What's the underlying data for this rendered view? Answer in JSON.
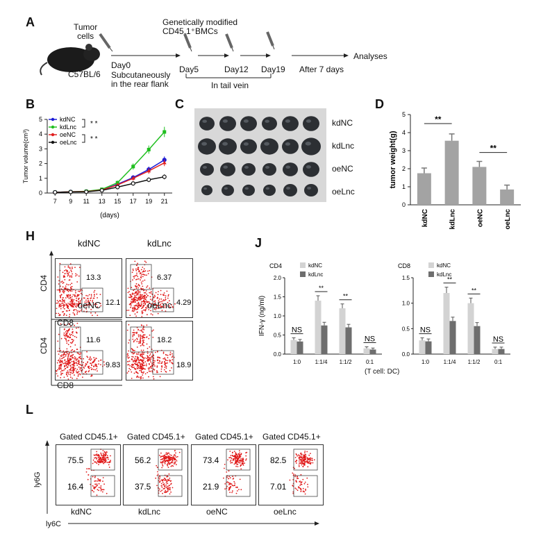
{
  "panels": {
    "A": "A",
    "B": "B",
    "C": "C",
    "D": "D",
    "H": "H",
    "J": "J",
    "L": "L"
  },
  "schematic": {
    "tumor_cells": "Tumor\ncells",
    "mouse": "C57BL/6",
    "modified": "Genetically modified",
    "bmcs": "CD45.1⁺BMCs",
    "day0": "Day0",
    "subq1": "Subcutaneously",
    "subq2": "in the rear flank",
    "day5": "Day5",
    "day12": "Day12",
    "day19": "Day19",
    "after": "After 7 days",
    "analyses": "Analyses",
    "tailvein": "In tail vein"
  },
  "chart_data": [
    {
      "type": "line",
      "ylabel": "Tumor volume(cm³)",
      "xlabel": "(days)",
      "ylim": [
        0,
        5
      ],
      "x": [
        7,
        9,
        11,
        13,
        15,
        17,
        19,
        21
      ],
      "series": [
        {
          "name": "kdNC",
          "values": [
            0.05,
            0.08,
            0.1,
            0.2,
            0.6,
            1.05,
            1.6,
            2.25
          ],
          "color": "#1a1ad6"
        },
        {
          "name": "kdLnc",
          "values": [
            0.05,
            0.08,
            0.12,
            0.25,
            0.7,
            1.8,
            2.95,
            4.15
          ],
          "color": "#1fbf1f"
        },
        {
          "name": "oeNC",
          "values": [
            0.05,
            0.08,
            0.1,
            0.2,
            0.55,
            1.0,
            1.5,
            2.05
          ],
          "color": "#e02020"
        },
        {
          "name": "oeLnc",
          "values": [
            0.05,
            0.07,
            0.08,
            0.18,
            0.4,
            0.65,
            0.9,
            1.1
          ],
          "color": "#111111"
        }
      ],
      "annotations": [
        "* *",
        "* *"
      ]
    },
    {
      "type": "bar",
      "ylabel": "tumor weight(g)",
      "ylim": [
        0,
        5
      ],
      "categories": [
        "kdNC",
        "kdLnc",
        "oeNC",
        "oeLnc"
      ],
      "values": [
        1.75,
        3.55,
        2.1,
        0.85
      ],
      "annotations": [
        "**",
        "**"
      ]
    },
    {
      "type": "bar",
      "title": "CD4",
      "ylabel": "IFN-γ (ng/ml)",
      "ylim": [
        0,
        2.0
      ],
      "categories": [
        "1:0",
        "1:1/4",
        "1:1/2",
        "0:1"
      ],
      "series": [
        {
          "name": "kdNC",
          "values": [
            0.37,
            1.4,
            1.2,
            0.15
          ]
        },
        {
          "name": "kdLnc",
          "values": [
            0.33,
            0.75,
            0.7,
            0.12
          ]
        }
      ],
      "annotations": [
        "NS",
        "**",
        "**",
        "NS"
      ]
    },
    {
      "type": "bar",
      "title": "CD8",
      "ylim": [
        0,
        1.5
      ],
      "categories": [
        "1:0",
        "1:1/4",
        "1:1/2",
        "0:1"
      ],
      "series": [
        {
          "name": "kdNC",
          "values": [
            0.27,
            1.2,
            1.0,
            0.1
          ]
        },
        {
          "name": "kdLnc",
          "values": [
            0.25,
            0.65,
            0.55,
            0.1
          ]
        }
      ],
      "xlabel": "(T cell: DC)",
      "annotations": [
        "NS",
        "**",
        "**",
        "NS"
      ]
    }
  ],
  "yticks_B": [
    "0",
    "1",
    "2",
    "3",
    "4",
    "5"
  ],
  "yticks_D": [
    "0",
    "1",
    "2",
    "3",
    "4",
    "5"
  ],
  "yticks_J4": [
    "0.0",
    "0.5",
    "1.0",
    "1.5",
    "2.0"
  ],
  "yticks_J8": [
    "0.0",
    "0.5",
    "1.0",
    "1.5"
  ],
  "photo_labels": [
    "kdNC",
    "kdLnc",
    "oeNC",
    "oeLnc"
  ],
  "flowH": [
    {
      "title": "kdNC",
      "cd4": "13.3",
      "cd8": "12.1"
    },
    {
      "title": "kdLnc",
      "cd4": "6.37",
      "cd8": "4.29"
    },
    {
      "title": "oeNC",
      "cd4": "11.6",
      "cd8": "9.83"
    },
    {
      "title": "oeLnc",
      "cd4": "18.2",
      "cd8": "18.9"
    }
  ],
  "axisH": {
    "y": "CD4",
    "x": "CD8"
  },
  "flowL": [
    {
      "title": "Gated CD45.1+",
      "top": "75.5",
      "bottom": "16.4",
      "name": "kdNC"
    },
    {
      "title": "Gated CD45.1+",
      "top": "56.2",
      "bottom": "37.5",
      "name": "kdLnc"
    },
    {
      "title": "Gated CD45.1+",
      "top": "73.4",
      "bottom": "21.9",
      "name": "oeNC"
    },
    {
      "title": "Gated CD45.1+",
      "top": "82.5",
      "bottom": "7.01",
      "name": "oeLnc"
    }
  ],
  "axisL": {
    "y": "ly6G",
    "x": "ly6C"
  }
}
